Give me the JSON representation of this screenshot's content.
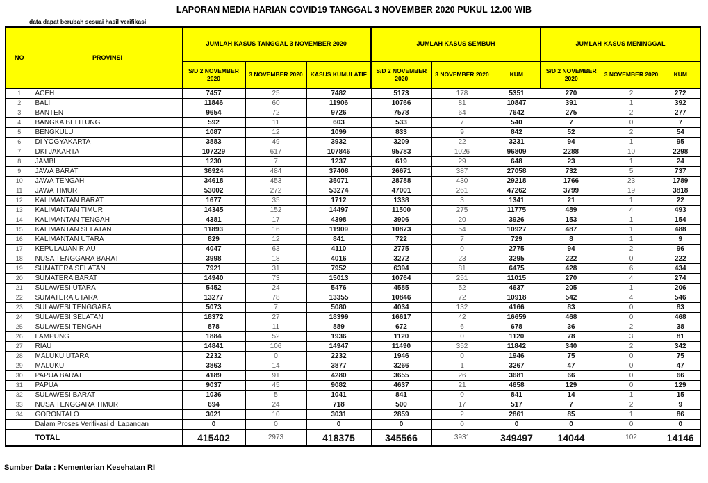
{
  "title": "LAPORAN MEDIA HARIAN COVID19 TANGGAL 3 NOVEMBER 2020 PUKUL 12.00 WIB",
  "note": "data dapat berubah sesuai hasil verifikasi",
  "footer": "Sumber Data : Kementerian Kesehatan RI",
  "colors": {
    "header_bg": "#FFFF00",
    "border": "#000000",
    "muted_text": "#595959"
  },
  "table": {
    "header": {
      "no": "NO",
      "provinsi": "PROVINSI",
      "groups": [
        {
          "label": "JUMLAH KASUS TANGGAL 3 NOVEMBER 2020",
          "cols": [
            "S/D 2 NOVEMBER 2020",
            "3 NOVEMBER 2020",
            "KASUS KUMULATIF"
          ]
        },
        {
          "label": "JUMLAH KASUS SEMBUH",
          "cols": [
            "S/D 2 NOVEMBER 2020",
            "3 NOVEMBER 2020",
            "KUM"
          ]
        },
        {
          "label": "JUMLAH KASUS MENINGGAL",
          "cols": [
            "S/D 2 NOVEMBER 2020",
            "3 NOVEMBER 2020",
            "KUM"
          ]
        }
      ]
    },
    "rows": [
      {
        "no": "1",
        "provinsi": "ACEH",
        "values": [
          "7457",
          "25",
          "7482",
          "5173",
          "178",
          "5351",
          "270",
          "2",
          "272"
        ]
      },
      {
        "no": "2",
        "provinsi": "BALI",
        "values": [
          "11846",
          "60",
          "11906",
          "10766",
          "81",
          "10847",
          "391",
          "1",
          "392"
        ]
      },
      {
        "no": "3",
        "provinsi": "BANTEN",
        "values": [
          "9654",
          "72",
          "9726",
          "7578",
          "64",
          "7642",
          "275",
          "2",
          "277"
        ]
      },
      {
        "no": "4",
        "provinsi": "BANGKA BELITUNG",
        "values": [
          "592",
          "11",
          "603",
          "533",
          "7",
          "540",
          "7",
          "0",
          "7"
        ]
      },
      {
        "no": "5",
        "provinsi": "BENGKULU",
        "values": [
          "1087",
          "12",
          "1099",
          "833",
          "9",
          "842",
          "52",
          "2",
          "54"
        ]
      },
      {
        "no": "6",
        "provinsi": "DI YOGYAKARTA",
        "values": [
          "3883",
          "49",
          "3932",
          "3209",
          "22",
          "3231",
          "94",
          "1",
          "95"
        ]
      },
      {
        "no": "7",
        "provinsi": "DKI JAKARTA",
        "values": [
          "107229",
          "617",
          "107846",
          "95783",
          "1026",
          "96809",
          "2288",
          "10",
          "2298"
        ]
      },
      {
        "no": "8",
        "provinsi": "JAMBI",
        "values": [
          "1230",
          "7",
          "1237",
          "619",
          "29",
          "648",
          "23",
          "1",
          "24"
        ]
      },
      {
        "no": "9",
        "provinsi": "JAWA BARAT",
        "values": [
          "36924",
          "484",
          "37408",
          "26671",
          "387",
          "27058",
          "732",
          "5",
          "737"
        ]
      },
      {
        "no": "10",
        "provinsi": "JAWA TENGAH",
        "values": [
          "34618",
          "453",
          "35071",
          "28788",
          "430",
          "29218",
          "1766",
          "23",
          "1789"
        ]
      },
      {
        "no": "11",
        "provinsi": "JAWA TIMUR",
        "values": [
          "53002",
          "272",
          "53274",
          "47001",
          "261",
          "47262",
          "3799",
          "19",
          "3818"
        ]
      },
      {
        "no": "12",
        "provinsi": "KALIMANTAN BARAT",
        "values": [
          "1677",
          "35",
          "1712",
          "1338",
          "3",
          "1341",
          "21",
          "1",
          "22"
        ]
      },
      {
        "no": "13",
        "provinsi": "KALIMANTAN TIMUR",
        "values": [
          "14345",
          "152",
          "14497",
          "11500",
          "275",
          "11775",
          "489",
          "4",
          "493"
        ]
      },
      {
        "no": "14",
        "provinsi": "KALIMANTAN TENGAH",
        "values": [
          "4381",
          "17",
          "4398",
          "3906",
          "20",
          "3926",
          "153",
          "1",
          "154"
        ]
      },
      {
        "no": "15",
        "provinsi": "KALIMANTAN SELATAN",
        "values": [
          "11893",
          "16",
          "11909",
          "10873",
          "54",
          "10927",
          "487",
          "1",
          "488"
        ]
      },
      {
        "no": "16",
        "provinsi": "KALIMANTAN UTARA",
        "values": [
          "829",
          "12",
          "841",
          "722",
          "7",
          "729",
          "8",
          "1",
          "9"
        ]
      },
      {
        "no": "17",
        "provinsi": "KEPULAUAN RIAU",
        "values": [
          "4047",
          "63",
          "4110",
          "2775",
          "0",
          "2775",
          "94",
          "2",
          "96"
        ]
      },
      {
        "no": "18",
        "provinsi": "NUSA TENGGARA BARAT",
        "values": [
          "3998",
          "18",
          "4016",
          "3272",
          "23",
          "3295",
          "222",
          "0",
          "222"
        ]
      },
      {
        "no": "19",
        "provinsi": "SUMATERA SELATAN",
        "values": [
          "7921",
          "31",
          "7952",
          "6394",
          "81",
          "6475",
          "428",
          "6",
          "434"
        ]
      },
      {
        "no": "20",
        "provinsi": "SUMATERA BARAT",
        "values": [
          "14940",
          "73",
          "15013",
          "10764",
          "251",
          "11015",
          "270",
          "4",
          "274"
        ]
      },
      {
        "no": "21",
        "provinsi": "SULAWESI UTARA",
        "values": [
          "5452",
          "24",
          "5476",
          "4585",
          "52",
          "4637",
          "205",
          "1",
          "206"
        ]
      },
      {
        "no": "22",
        "provinsi": "SUMATERA UTARA",
        "values": [
          "13277",
          "78",
          "13355",
          "10846",
          "72",
          "10918",
          "542",
          "4",
          "546"
        ]
      },
      {
        "no": "23",
        "provinsi": "SULAWESI TENGGARA",
        "values": [
          "5073",
          "7",
          "5080",
          "4034",
          "132",
          "4166",
          "83",
          "0",
          "83"
        ]
      },
      {
        "no": "24",
        "provinsi": "SULAWESI SELATAN",
        "values": [
          "18372",
          "27",
          "18399",
          "16617",
          "42",
          "16659",
          "468",
          "0",
          "468"
        ]
      },
      {
        "no": "25",
        "provinsi": "SULAWESI TENGAH",
        "values": [
          "878",
          "11",
          "889",
          "672",
          "6",
          "678",
          "36",
          "2",
          "38"
        ]
      },
      {
        "no": "26",
        "provinsi": "LAMPUNG",
        "values": [
          "1884",
          "52",
          "1936",
          "1120",
          "0",
          "1120",
          "78",
          "3",
          "81"
        ]
      },
      {
        "no": "27",
        "provinsi": "RIAU",
        "values": [
          "14841",
          "106",
          "14947",
          "11490",
          "352",
          "11842",
          "340",
          "2",
          "342"
        ]
      },
      {
        "no": "28",
        "provinsi": "MALUKU UTARA",
        "values": [
          "2232",
          "0",
          "2232",
          "1946",
          "0",
          "1946",
          "75",
          "0",
          "75"
        ]
      },
      {
        "no": "29",
        "provinsi": "MALUKU",
        "values": [
          "3863",
          "14",
          "3877",
          "3266",
          "1",
          "3267",
          "47",
          "0",
          "47"
        ]
      },
      {
        "no": "30",
        "provinsi": "PAPUA BARAT",
        "values": [
          "4189",
          "91",
          "4280",
          "3655",
          "26",
          "3681",
          "66",
          "0",
          "66"
        ]
      },
      {
        "no": "31",
        "provinsi": "PAPUA",
        "values": [
          "9037",
          "45",
          "9082",
          "4637",
          "21",
          "4658",
          "129",
          "0",
          "129"
        ]
      },
      {
        "no": "32",
        "provinsi": "SULAWESI BARAT",
        "values": [
          "1036",
          "5",
          "1041",
          "841",
          "0",
          "841",
          "14",
          "1",
          "15"
        ]
      },
      {
        "no": "33",
        "provinsi": "NUSA TENGGARA TIMUR",
        "values": [
          "694",
          "24",
          "718",
          "500",
          "17",
          "517",
          "7",
          "2",
          "9"
        ]
      },
      {
        "no": "34",
        "provinsi": "GORONTALO",
        "values": [
          "3021",
          "10",
          "3031",
          "2859",
          "2",
          "2861",
          "85",
          "1",
          "86"
        ]
      }
    ],
    "verification_row": {
      "no": "",
      "provinsi": "Dalam Proses Verifikasi di Lapangan",
      "values": [
        "0",
        "0",
        "0",
        "0",
        "0",
        "0",
        "0",
        "0",
        "0"
      ]
    },
    "total_row": {
      "no": "",
      "provinsi": "TOTAL",
      "values": [
        "415402",
        "2973",
        "418375",
        "345566",
        "3931",
        "349497",
        "14044",
        "102",
        "14146"
      ]
    }
  }
}
